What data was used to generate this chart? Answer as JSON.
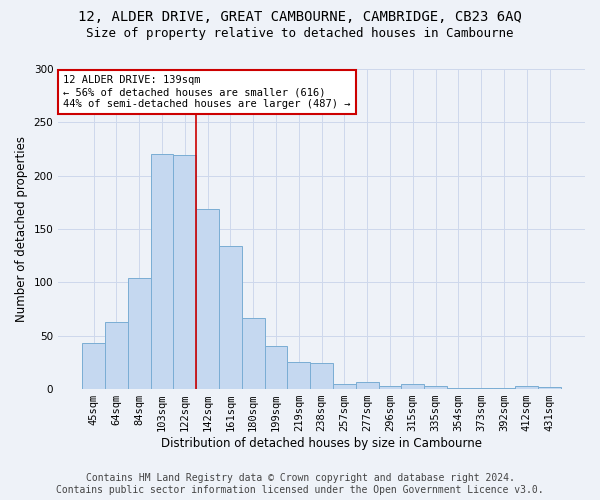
{
  "title_line1": "12, ALDER DRIVE, GREAT CAMBOURNE, CAMBRIDGE, CB23 6AQ",
  "title_line2": "Size of property relative to detached houses in Cambourne",
  "xlabel": "Distribution of detached houses by size in Cambourne",
  "ylabel": "Number of detached properties",
  "footer_line1": "Contains HM Land Registry data © Crown copyright and database right 2024.",
  "footer_line2": "Contains public sector information licensed under the Open Government Licence v3.0.",
  "categories": [
    "45sqm",
    "64sqm",
    "84sqm",
    "103sqm",
    "122sqm",
    "142sqm",
    "161sqm",
    "180sqm",
    "199sqm",
    "219sqm",
    "238sqm",
    "257sqm",
    "277sqm",
    "296sqm",
    "315sqm",
    "335sqm",
    "354sqm",
    "373sqm",
    "392sqm",
    "412sqm",
    "431sqm"
  ],
  "values": [
    43,
    63,
    104,
    220,
    219,
    169,
    134,
    67,
    40,
    25,
    24,
    5,
    7,
    3,
    5,
    3,
    1,
    1,
    1,
    3,
    2
  ],
  "bar_color": "#c5d8f0",
  "bar_edge_color": "#7aadd4",
  "grid_color": "#cdd8ec",
  "annotation_text": "12 ALDER DRIVE: 139sqm\n← 56% of detached houses are smaller (616)\n44% of semi-detached houses are larger (487) →",
  "annotation_box_color": "white",
  "annotation_box_edge_color": "#cc0000",
  "vline_color": "#cc0000",
  "vline_x_index": 4.5,
  "ylim": [
    0,
    300
  ],
  "yticks": [
    0,
    50,
    100,
    150,
    200,
    250,
    300
  ],
  "background_color": "#eef2f8",
  "title_fontsize": 10,
  "subtitle_fontsize": 9,
  "axis_label_fontsize": 8.5,
  "tick_fontsize": 7.5,
  "footer_fontsize": 7
}
